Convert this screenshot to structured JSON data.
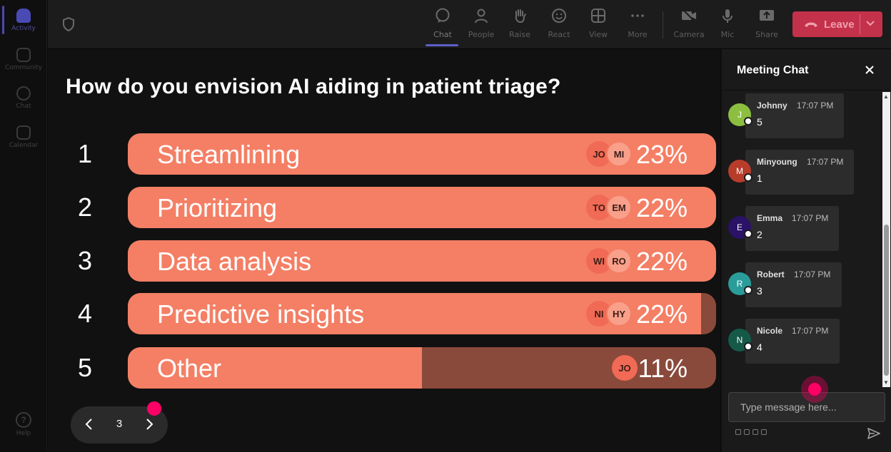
{
  "rail": {
    "items": [
      {
        "label": "Activity",
        "icon": "bell-icon",
        "active": true
      },
      {
        "label": "Community",
        "icon": "community-icon",
        "active": false
      },
      {
        "label": "Chat",
        "icon": "chat-icon",
        "active": false
      },
      {
        "label": "Calendar",
        "icon": "calendar-icon",
        "active": false
      }
    ],
    "help": {
      "label": "Help",
      "icon": "help-icon",
      "glyph": "?"
    }
  },
  "toolbar": {
    "tools": [
      {
        "label": "Chat",
        "icon": "chat-icon"
      },
      {
        "label": "People",
        "icon": "people-icon"
      },
      {
        "label": "Raise",
        "icon": "raise-hand-icon"
      },
      {
        "label": "React",
        "icon": "react-icon"
      },
      {
        "label": "View",
        "icon": "view-icon"
      },
      {
        "label": "More",
        "icon": "more-icon"
      },
      {
        "label": "Camera",
        "icon": "camera-off-icon"
      },
      {
        "label": "Mic",
        "icon": "mic-icon"
      },
      {
        "label": "Share",
        "icon": "share-icon"
      }
    ],
    "leave_label": "Leave",
    "accent": "#c4314b"
  },
  "poll": {
    "question": "How do you envision AI aiding in patient triage?",
    "options": [
      {
        "num": "1",
        "label": "Streamlining",
        "pct": "23%",
        "fill": 1.0,
        "avatars": [
          "JO",
          "MI"
        ]
      },
      {
        "num": "2",
        "label": "Prioritizing",
        "pct": "22%",
        "fill": 1.0,
        "avatars": [
          "TO",
          "EM"
        ]
      },
      {
        "num": "3",
        "label": "Data analysis",
        "pct": "22%",
        "fill": 1.0,
        "avatars": [
          "WI",
          "RO"
        ]
      },
      {
        "num": "4",
        "label": "Predictive insights",
        "pct": "22%",
        "fill": 0.975,
        "avatars": [
          "NI",
          "HY"
        ]
      },
      {
        "num": "5",
        "label": "Other",
        "pct": "11%",
        "fill": 0.5,
        "avatars": [
          "JO"
        ]
      }
    ],
    "colors": {
      "fill": "#f47f65",
      "track": "#8a4a3b"
    },
    "pager": {
      "page": "3"
    }
  },
  "chat": {
    "title": "Meeting Chat",
    "messages": [
      {
        "initial": "J",
        "name": "Johnny",
        "time": "17:07 PM",
        "text": "5",
        "color": "#8cbf3f"
      },
      {
        "initial": "M",
        "name": "Minyoung",
        "time": "17:07 PM",
        "text": "1",
        "color": "#b83c2a"
      },
      {
        "initial": "E",
        "name": "Emma",
        "time": "17:07 PM",
        "text": "2",
        "color": "#2a1266"
      },
      {
        "initial": "R",
        "name": "Robert",
        "time": "17:07 PM",
        "text": "3",
        "color": "#2a9d9a"
      },
      {
        "initial": "N",
        "name": "Nicole",
        "time": "17:07 PM",
        "text": "4",
        "color": "#155a48"
      }
    ],
    "input_placeholder": "Type message here..."
  }
}
